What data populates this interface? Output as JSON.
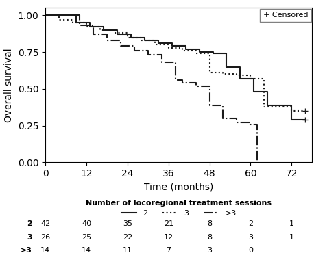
{
  "chart_data": {
    "type": "step",
    "xlabel": "Time (months)",
    "ylabel": "Overall survival",
    "xlim": [
      0,
      78
    ],
    "ylim": [
      0.0,
      1.05
    ],
    "xticks": [
      0,
      12,
      24,
      36,
      48,
      60,
      72
    ],
    "yticks": [
      {
        "value": 0.0,
        "label": "0.00"
      },
      {
        "value": 0.25,
        "label": "0.25"
      },
      {
        "value": 0.5,
        "label": "0.50"
      },
      {
        "value": 0.75,
        "label": "0.75"
      },
      {
        "value": 1.0,
        "label": "1.00"
      }
    ],
    "annotation": "+ Censored",
    "legend": "upper center",
    "legend_title": "Number of locoregional treatment sessions",
    "series": [
      {
        "name": "2",
        "color": "#1a1a1a",
        "line_style": "solid",
        "x": [
          0,
          5,
          9,
          13,
          17,
          21,
          25,
          29,
          33,
          37,
          41,
          45,
          49,
          53,
          57,
          61,
          65,
          72,
          76
        ],
        "values": [
          1.0,
          1.0,
          0.95,
          0.92,
          0.9,
          0.87,
          0.85,
          0.83,
          0.81,
          0.79,
          0.77,
          0.75,
          0.74,
          0.65,
          0.57,
          0.48,
          0.39,
          0.29,
          0.29
        ],
        "censored_x": [
          76
        ],
        "censored_values": [
          0.29
        ]
      },
      {
        "name": "3",
        "color": "#1a1a1a",
        "line_style": "dotted",
        "x": [
          0,
          4,
          8,
          12,
          16,
          20,
          24,
          28,
          32,
          36,
          40,
          44,
          48,
          52,
          56,
          60,
          64,
          72,
          76
        ],
        "values": [
          1.0,
          0.97,
          0.95,
          0.92,
          0.9,
          0.88,
          0.85,
          0.83,
          0.8,
          0.78,
          0.76,
          0.74,
          0.61,
          0.6,
          0.59,
          0.57,
          0.38,
          0.35,
          0.35
        ],
        "censored_x": [
          76
        ],
        "censored_values": [
          0.35
        ]
      },
      {
        "name": ">3",
        "color": "#1a1a1a",
        "line_style": "dashdot",
        "x": [
          0,
          6,
          10,
          14,
          18,
          22,
          26,
          30,
          34,
          38,
          40,
          44,
          48,
          52,
          56,
          60,
          62
        ],
        "values": [
          1.0,
          1.0,
          0.93,
          0.87,
          0.83,
          0.79,
          0.76,
          0.73,
          0.68,
          0.56,
          0.54,
          0.52,
          0.39,
          0.3,
          0.27,
          0.26,
          0.0
        ],
        "censored_x": [],
        "censored_values": []
      }
    ],
    "at_risk": {
      "labels": [
        "2",
        "3",
        ">3"
      ],
      "x": [
        0,
        12,
        24,
        36,
        48,
        60,
        72
      ],
      "values": [
        [
          42,
          40,
          35,
          21,
          8,
          2,
          1
        ],
        [
          26,
          25,
          22,
          12,
          8,
          3,
          1
        ],
        [
          14,
          14,
          11,
          7,
          3,
          0,
          null
        ]
      ]
    }
  }
}
